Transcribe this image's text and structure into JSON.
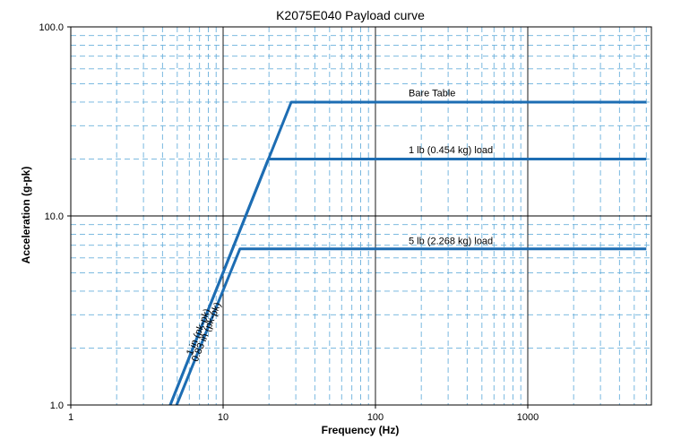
{
  "chart_data": {
    "type": "line",
    "title": "K2075E040 Payload curve",
    "xlabel": "Frequency (Hz)",
    "ylabel": "Acceleration (g-pk)",
    "xscale": "log",
    "yscale": "log",
    "xlim": [
      1,
      6000
    ],
    "ylim": [
      1,
      100
    ],
    "grid": true,
    "x_ticks": [
      {
        "value": 1,
        "label": "1"
      },
      {
        "value": 10,
        "label": "10"
      },
      {
        "value": 100,
        "label": "100"
      },
      {
        "value": 1000,
        "label": "1000"
      }
    ],
    "y_ticks": [
      {
        "value": 1,
        "label": "1.0"
      },
      {
        "value": 10,
        "label": "10.0"
      },
      {
        "value": 100,
        "label": "100.0"
      }
    ],
    "colors": {
      "series": "#1d6db3",
      "major_grid": "#000000",
      "minor_grid": "#6ab0dc"
    },
    "series": [
      {
        "name": "Bare Table",
        "x": [
          4.5,
          28,
          6000
        ],
        "y": [
          1.0,
          40,
          40
        ]
      },
      {
        "name": "1 lb (0.454  kg) load",
        "x": [
          4.5,
          19.8,
          6000
        ],
        "y": [
          1.0,
          20,
          20
        ]
      },
      {
        "name": "5 lb (2.268  kg) load",
        "x": [
          4.95,
          12.9,
          6000
        ],
        "y": [
          1.0,
          6.7,
          6.7
        ]
      }
    ],
    "annotations": [
      {
        "text": "Bare Table",
        "x": 165,
        "y": 43
      },
      {
        "text": "1 lb (0.454  kg) load",
        "x": 165,
        "y": 21.5
      },
      {
        "text": "5 lb (2.268  kg) load",
        "x": 165,
        "y": 7.1
      },
      {
        "text": "1 in (pk-pk)",
        "x": 7.2,
        "y": 2.4
      },
      {
        "text": "0.83 in (pk-pk)",
        "x": 8.1,
        "y": 2.4
      }
    ]
  }
}
